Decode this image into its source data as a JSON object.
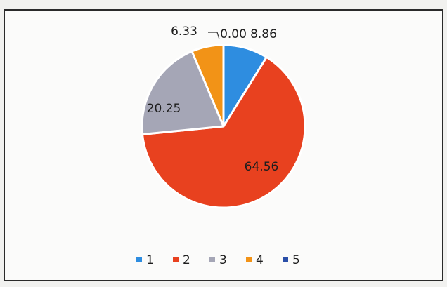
{
  "chart_data": {
    "type": "pie",
    "categories": [
      "1",
      "2",
      "3",
      "4",
      "5"
    ],
    "values": [
      8.86,
      64.56,
      20.25,
      6.33,
      0
    ],
    "value_labels": [
      "8.86",
      "64.56",
      "20.25",
      "6.33",
      "0.00"
    ],
    "colors": [
      "#2e8de0",
      "#e8411f",
      "#a5a6b6",
      "#f29317",
      "#2a4fa8"
    ],
    "legend": "bottom"
  }
}
